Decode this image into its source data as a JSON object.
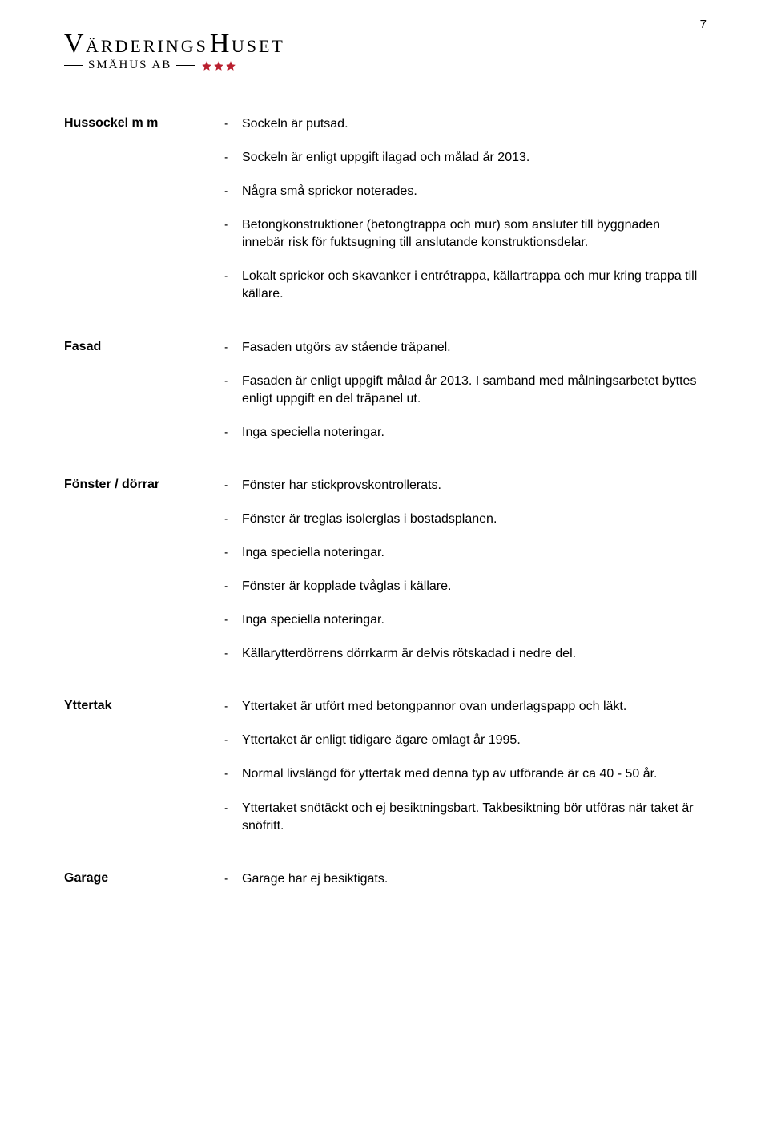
{
  "page_number": "7",
  "logo": {
    "line1_parts": [
      "V",
      "ÄRDERINGS",
      "H",
      "USET"
    ],
    "line2": "SMÅHUS AB",
    "star_color": "#b91f2e",
    "star_count": 3
  },
  "colors": {
    "text": "#000000",
    "background": "#ffffff"
  },
  "typography": {
    "body_font": "Arial",
    "body_size_pt": 12,
    "label_weight": "bold",
    "logo_font": "Times New Roman"
  },
  "sections": [
    {
      "label": "Hussockel m m",
      "items": [
        "Sockeln är putsad.",
        "Sockeln är enligt uppgift ilagad och målad år 2013.",
        "Några små sprickor noterades.",
        "Betongkonstruktioner (betongtrappa och mur) som ansluter till byggnaden innebär risk för fuktsugning till anslutande konstruktionsdelar.",
        "Lokalt sprickor och skavanker i entrétrappa, källartrappa och mur kring trappa till källare."
      ]
    },
    {
      "label": "Fasad",
      "items": [
        "Fasaden utgörs av stående träpanel.",
        "Fasaden är enligt uppgift målad år 2013. I samband med målningsarbetet byttes enligt uppgift en del träpanel ut.",
        "Inga speciella noteringar."
      ]
    },
    {
      "label": "Fönster / dörrar",
      "items": [
        "Fönster har stickprovskontrollerats.",
        "Fönster är treglas isolerglas i bostadsplanen.",
        "Inga speciella noteringar.",
        "Fönster är kopplade tvåglas i källare.",
        "Inga speciella noteringar.",
        "Källarytterdörrens dörrkarm är delvis rötskadad i nedre del."
      ]
    },
    {
      "label": "Yttertak",
      "items": [
        "Yttertaket är utfört med betongpannor ovan underlagspapp och läkt.",
        "Yttertaket är enligt tidigare ägare omlagt år 1995.",
        "Normal livslängd för yttertak med denna typ av utförande är ca 40 - 50 år.",
        "Yttertaket snötäckt och ej besiktningsbart. Takbesiktning bör utföras när taket är snöfritt."
      ]
    },
    {
      "label": "Garage",
      "items": [
        "Garage har ej besiktigats."
      ]
    }
  ]
}
